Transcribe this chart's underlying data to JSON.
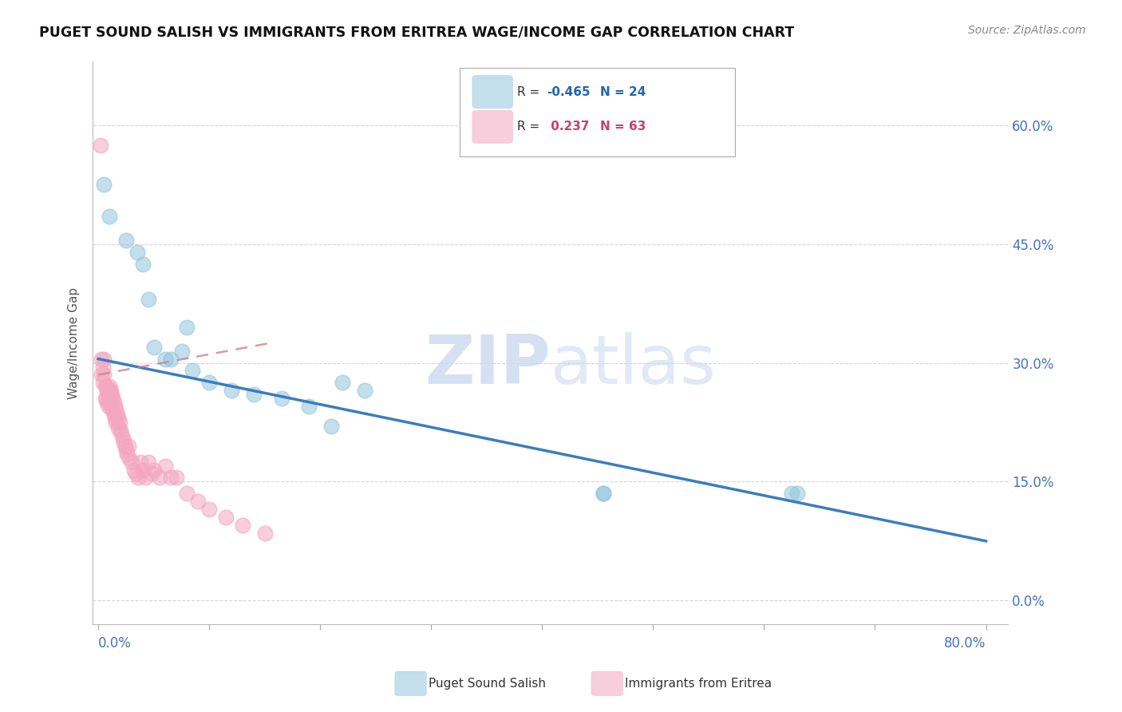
{
  "title": "PUGET SOUND SALISH VS IMMIGRANTS FROM ERITREA WAGE/INCOME GAP CORRELATION CHART",
  "source": "Source: ZipAtlas.com",
  "ylabel": "Wage/Income Gap",
  "xlim": [
    0.0,
    0.8
  ],
  "ylim": [
    0.0,
    0.65
  ],
  "ytick_positions": [
    0.0,
    0.15,
    0.3,
    0.45,
    0.6
  ],
  "ytick_labels_right": [
    "0.0%",
    "15.0%",
    "30.0%",
    "45.0%",
    "60.0%"
  ],
  "blue_color": "#92c5de",
  "pink_color": "#f4a6c0",
  "blue_line_color": "#3a7dbf",
  "pink_line_color": "#d08090",
  "blue_line_x": [
    0.0,
    0.8
  ],
  "blue_line_y": [
    0.305,
    0.075
  ],
  "pink_line_x": [
    0.0,
    0.155
  ],
  "pink_line_y": [
    0.285,
    0.325
  ],
  "blue_x": [
    0.005,
    0.01,
    0.025,
    0.035,
    0.04,
    0.045,
    0.05,
    0.06,
    0.065,
    0.075,
    0.085,
    0.1,
    0.12,
    0.14,
    0.165,
    0.19,
    0.21,
    0.22,
    0.24,
    0.455,
    0.455,
    0.625,
    0.63,
    0.08
  ],
  "blue_y": [
    0.525,
    0.485,
    0.455,
    0.44,
    0.425,
    0.38,
    0.32,
    0.305,
    0.305,
    0.315,
    0.29,
    0.275,
    0.265,
    0.26,
    0.255,
    0.245,
    0.22,
    0.275,
    0.265,
    0.135,
    0.135,
    0.135,
    0.135,
    0.345
  ],
  "pink_x": [
    0.002,
    0.003,
    0.003,
    0.004,
    0.004,
    0.005,
    0.005,
    0.006,
    0.006,
    0.007,
    0.007,
    0.008,
    0.008,
    0.009,
    0.009,
    0.01,
    0.01,
    0.01,
    0.011,
    0.011,
    0.012,
    0.012,
    0.013,
    0.013,
    0.014,
    0.014,
    0.015,
    0.015,
    0.016,
    0.016,
    0.017,
    0.018,
    0.018,
    0.019,
    0.02,
    0.021,
    0.022,
    0.023,
    0.024,
    0.025,
    0.026,
    0.027,
    0.028,
    0.03,
    0.032,
    0.034,
    0.036,
    0.038,
    0.04,
    0.042,
    0.045,
    0.048,
    0.05,
    0.055,
    0.06,
    0.065,
    0.07,
    0.08,
    0.09,
    0.1,
    0.115,
    0.13,
    0.15
  ],
  "pink_y": [
    0.575,
    0.305,
    0.285,
    0.295,
    0.275,
    0.305,
    0.285,
    0.27,
    0.255,
    0.27,
    0.255,
    0.265,
    0.25,
    0.26,
    0.245,
    0.27,
    0.265,
    0.255,
    0.265,
    0.25,
    0.26,
    0.245,
    0.255,
    0.24,
    0.25,
    0.235,
    0.245,
    0.23,
    0.24,
    0.225,
    0.235,
    0.23,
    0.218,
    0.225,
    0.215,
    0.21,
    0.205,
    0.2,
    0.195,
    0.19,
    0.185,
    0.195,
    0.18,
    0.175,
    0.165,
    0.16,
    0.155,
    0.175,
    0.165,
    0.155,
    0.175,
    0.16,
    0.165,
    0.155,
    0.17,
    0.155,
    0.155,
    0.135,
    0.125,
    0.115,
    0.105,
    0.095,
    0.085
  ],
  "background_color": "#ffffff",
  "grid_color": "#cccccc",
  "watermark": "ZIPatlas",
  "watermark_zip": "ZIP",
  "watermark_atlas": "atlas"
}
